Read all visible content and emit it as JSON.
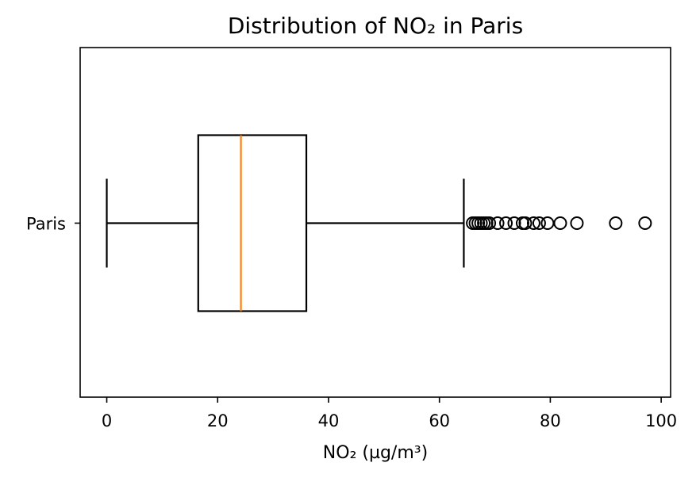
{
  "chart_data": {
    "type": "box",
    "orientation": "horizontal",
    "title": "Distribution of NO₂ in Paris",
    "xlabel": "NO₂ (µg/m³)",
    "ylabel": "",
    "xlim": [
      -4.8,
      101.7
    ],
    "xticks": [
      0,
      20,
      40,
      60,
      80,
      100
    ],
    "grid": false,
    "categories": [
      "Paris"
    ],
    "boxes": [
      {
        "name": "Paris",
        "whisker_low": 0.0,
        "q1": 16.5,
        "median": 24.2,
        "q3": 36.0,
        "whisker_high": 64.4,
        "outliers": [
          66.0,
          66.5,
          67.0,
          67.5,
          68.0,
          68.5,
          69.0,
          70.5,
          72.0,
          73.5,
          75.0,
          75.5,
          77.0,
          78.0,
          79.5,
          81.8,
          84.8,
          91.8,
          97.1
        ]
      }
    ],
    "colors": {
      "box": "#000000",
      "median": "#ff7f0e",
      "outlier": "#000000"
    }
  }
}
